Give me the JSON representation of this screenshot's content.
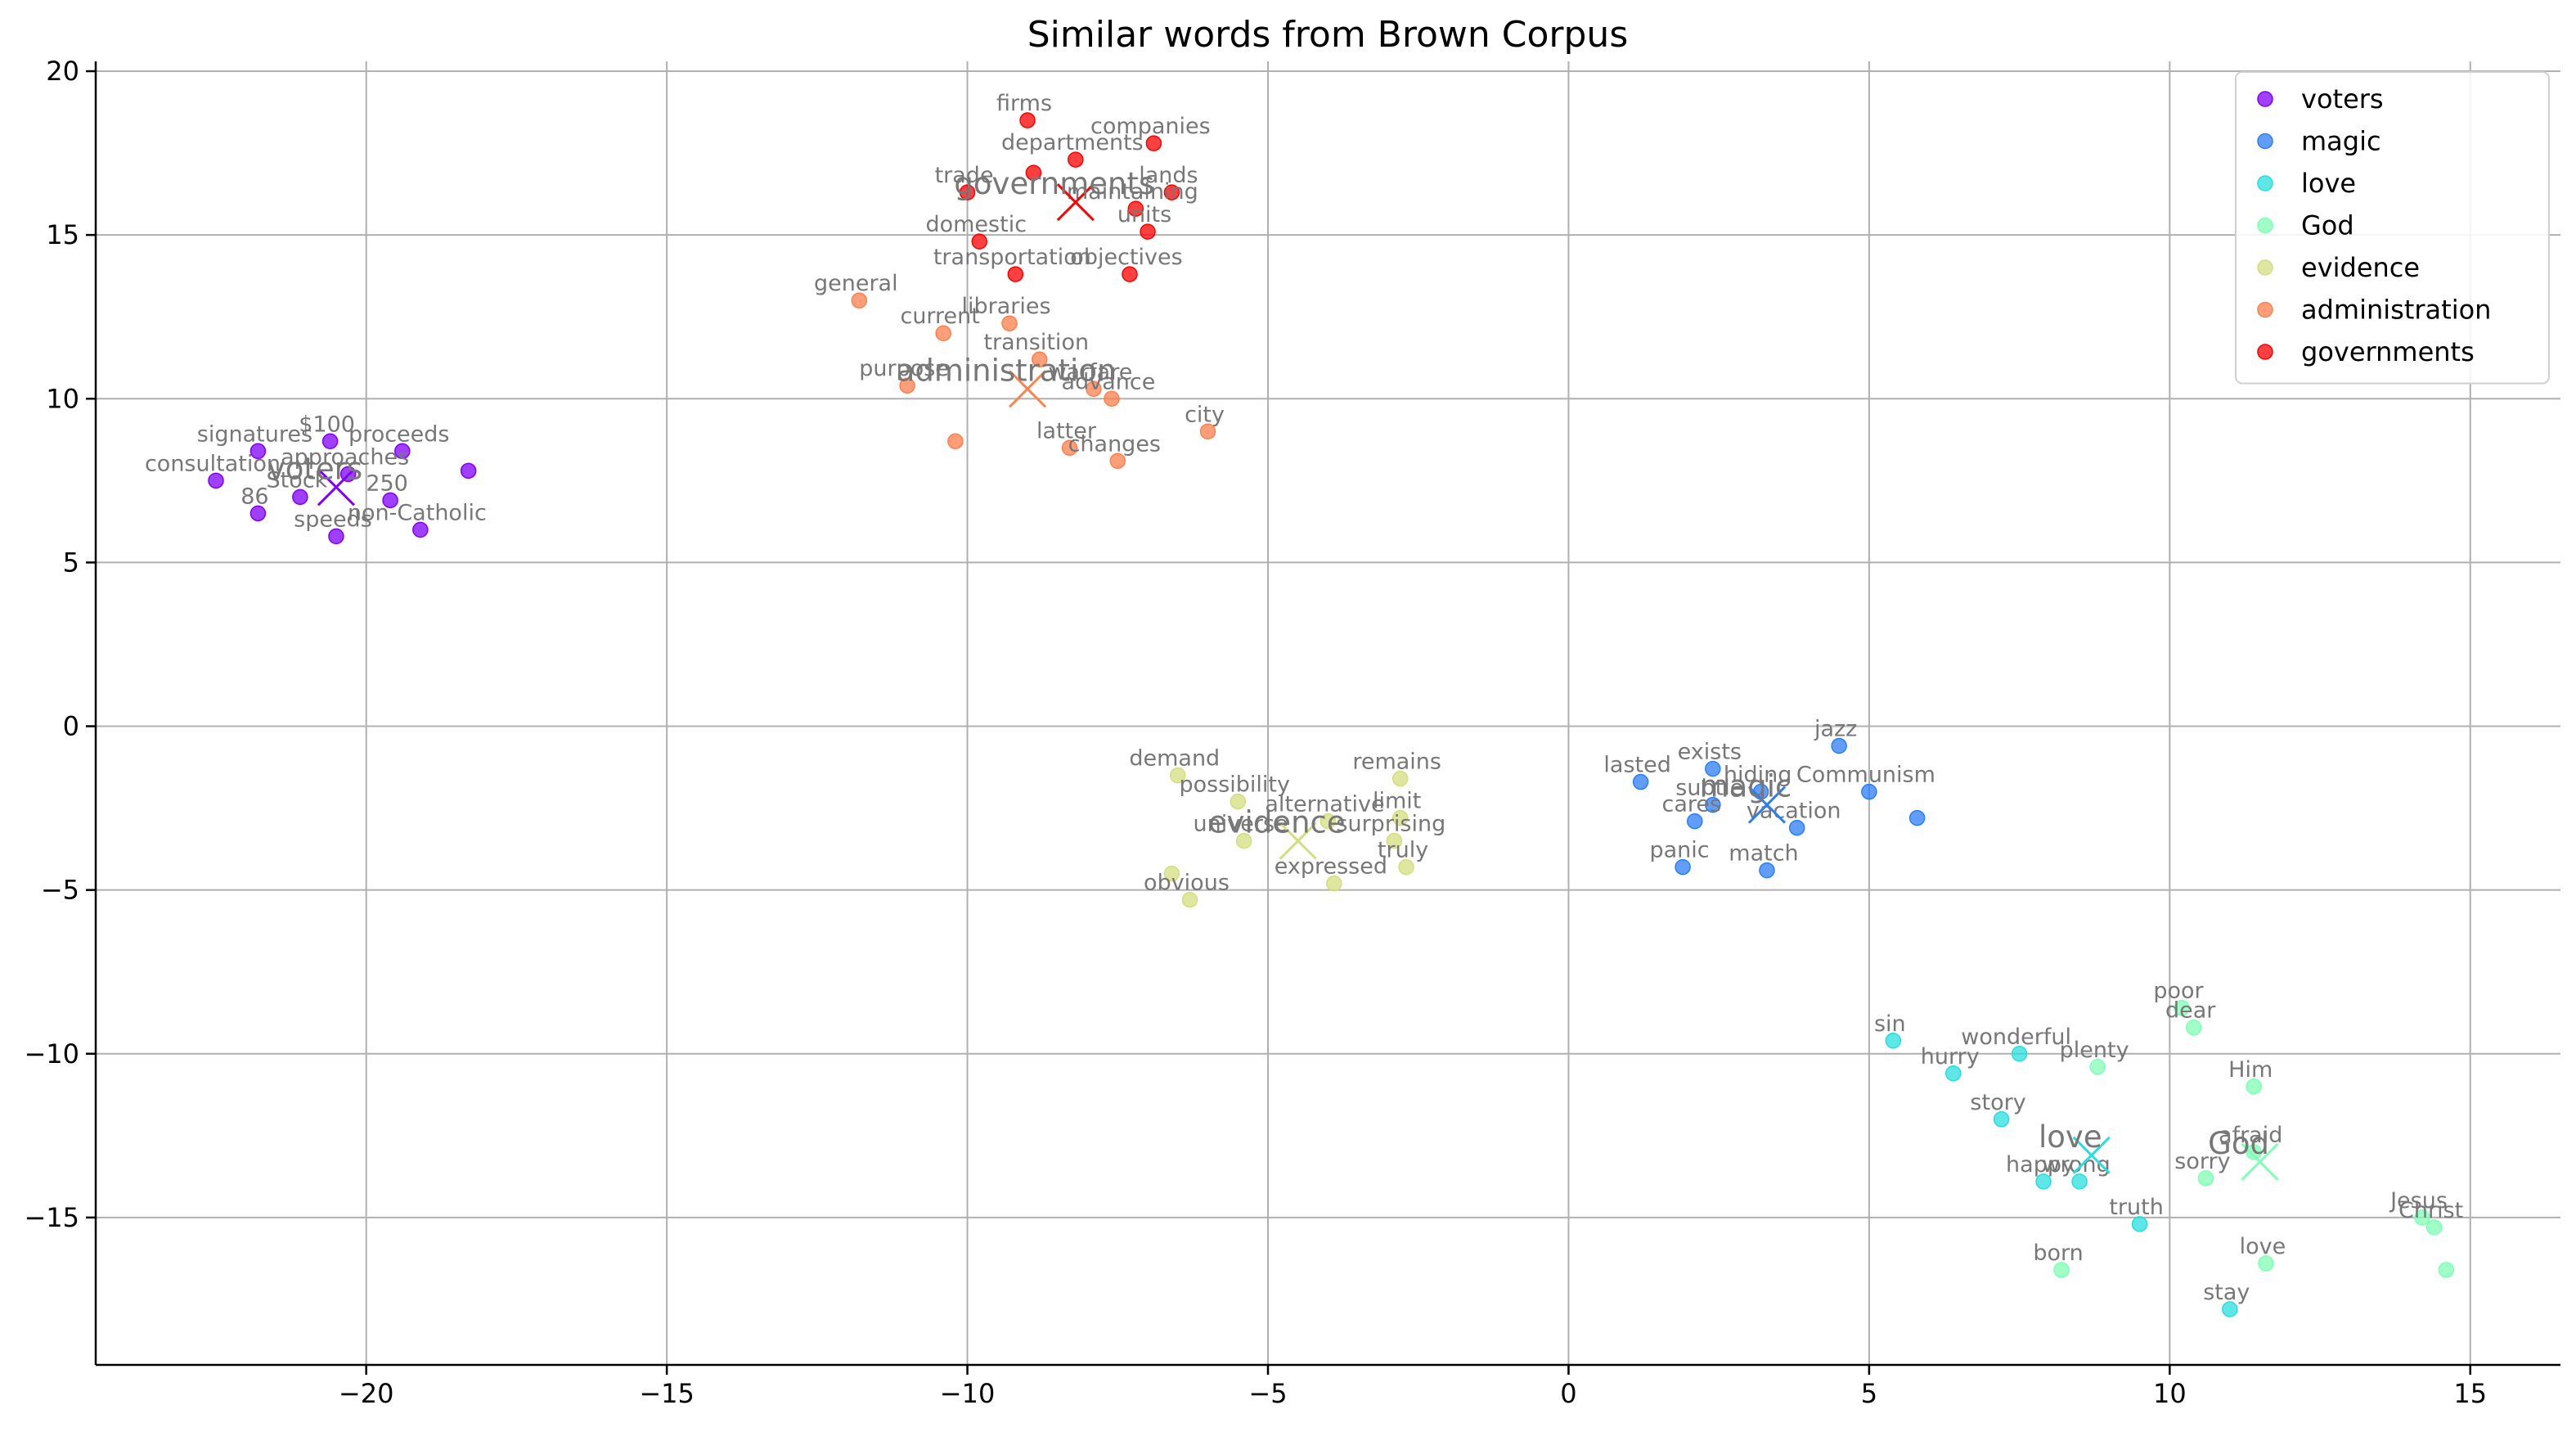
{
  "chart_data": {
    "type": "scatter",
    "title": "Similar words from Brown Corpus",
    "xlabel": "",
    "ylabel": "",
    "xlim": [
      -24.5,
      16.5
    ],
    "ylim": [
      -19.5,
      20.3
    ],
    "xticks": [
      -20,
      -15,
      -10,
      -5,
      0,
      5,
      10,
      15
    ],
    "yticks": [
      -15,
      -10,
      -5,
      0,
      5,
      10,
      15,
      20
    ],
    "grid": true,
    "legend_position": "top-right",
    "series": [
      {
        "name": "voters",
        "color": "#8000ff",
        "centroid": {
          "label": "voters",
          "x": -20.5,
          "y": 7.3
        },
        "points": [
          {
            "label": "signatures",
            "x": -21.8,
            "y": 8.4
          },
          {
            "label": "$100",
            "x": -20.6,
            "y": 8.7
          },
          {
            "label": "approaches",
            "x": -20.3,
            "y": 7.7
          },
          {
            "label": "proceeds",
            "x": -19.4,
            "y": 8.4
          },
          {
            "label": "250",
            "x": -19.6,
            "y": 6.9
          },
          {
            "label": "consultation",
            "x": -22.5,
            "y": 7.5
          },
          {
            "label": "86",
            "x": -21.8,
            "y": 6.5
          },
          {
            "label": "Stock",
            "x": -21.1,
            "y": 7.0
          },
          {
            "label": "non-Catholic",
            "x": -19.1,
            "y": 6.0
          },
          {
            "label": "speeds",
            "x": -20.5,
            "y": 5.8
          },
          {
            "label": "",
            "x": -18.3,
            "y": 7.8
          }
        ]
      },
      {
        "name": "magic",
        "color": "#2c7ef7",
        "centroid": {
          "label": "magic",
          "x": 3.3,
          "y": -2.4
        },
        "points": [
          {
            "label": "jazz",
            "x": 4.5,
            "y": -0.6
          },
          {
            "label": "exists",
            "x": 2.4,
            "y": -1.3
          },
          {
            "label": "lasted",
            "x": 1.2,
            "y": -1.7
          },
          {
            "label": "hiding",
            "x": 3.2,
            "y": -2.0
          },
          {
            "label": "subtle",
            "x": 2.4,
            "y": -2.4
          },
          {
            "label": "cares",
            "x": 2.1,
            "y": -2.9
          },
          {
            "label": "vacation",
            "x": 3.8,
            "y": -3.1
          },
          {
            "label": "Communism",
            "x": 5.0,
            "y": -2.0
          },
          {
            "label": "",
            "x": 5.8,
            "y": -2.8
          },
          {
            "label": "panic",
            "x": 1.9,
            "y": -4.3
          },
          {
            "label": "match",
            "x": 3.3,
            "y": -4.4
          }
        ]
      },
      {
        "name": "love",
        "color": "#2adddd",
        "centroid": {
          "label": "love",
          "x": 8.7,
          "y": -13.1
        },
        "points": [
          {
            "label": "sin",
            "x": 5.4,
            "y": -9.6
          },
          {
            "label": "wonderful",
            "x": 7.5,
            "y": -10.0
          },
          {
            "label": "hurry",
            "x": 6.4,
            "y": -10.6
          },
          {
            "label": "story",
            "x": 7.2,
            "y": -12.0
          },
          {
            "label": "happy",
            "x": 7.9,
            "y": -13.9
          },
          {
            "label": "wrong",
            "x": 8.5,
            "y": -13.9
          },
          {
            "label": "truth",
            "x": 9.5,
            "y": -15.2
          },
          {
            "label": "stay",
            "x": 11.0,
            "y": -17.8
          }
        ]
      },
      {
        "name": "God",
        "color": "#80ffb4",
        "centroid": {
          "label": "God",
          "x": 11.5,
          "y": -13.3
        },
        "points": [
          {
            "label": "poor",
            "x": 10.2,
            "y": -8.6
          },
          {
            "label": "dear",
            "x": 10.4,
            "y": -9.2
          },
          {
            "label": "plenty",
            "x": 8.8,
            "y": -10.4
          },
          {
            "label": "Him",
            "x": 11.4,
            "y": -11.0
          },
          {
            "label": "afraid",
            "x": 11.4,
            "y": -13.0
          },
          {
            "label": "sorry",
            "x": 10.6,
            "y": -13.8
          },
          {
            "label": "Jesus",
            "x": 14.2,
            "y": -15.0
          },
          {
            "label": "Christ",
            "x": 14.4,
            "y": -15.3
          },
          {
            "label": "love",
            "x": 11.6,
            "y": -16.4
          },
          {
            "label": "born",
            "x": 8.2,
            "y": -16.6
          },
          {
            "label": "",
            "x": 14.6,
            "y": -16.6
          }
        ]
      },
      {
        "name": "evidence",
        "color": "#d4dd80",
        "centroid": {
          "label": "evidence",
          "x": -4.5,
          "y": -3.5
        },
        "points": [
          {
            "label": "demand",
            "x": -6.5,
            "y": -1.5
          },
          {
            "label": "remains",
            "x": -2.8,
            "y": -1.6
          },
          {
            "label": "possibility",
            "x": -5.5,
            "y": -2.3
          },
          {
            "label": "alternative",
            "x": -4.0,
            "y": -2.9
          },
          {
            "label": "limit",
            "x": -2.8,
            "y": -2.8
          },
          {
            "label": "universe",
            "x": -5.4,
            "y": -3.5
          },
          {
            "label": "surprising",
            "x": -2.9,
            "y": -3.5
          },
          {
            "label": "truly",
            "x": -2.7,
            "y": -4.3
          },
          {
            "label": "expressed",
            "x": -3.9,
            "y": -4.8
          },
          {
            "label": "",
            "x": -6.6,
            "y": -4.5
          },
          {
            "label": "obvious",
            "x": -6.3,
            "y": -5.3
          }
        ]
      },
      {
        "name": "administration",
        "color": "#ff7f4d",
        "centroid": {
          "label": "administration",
          "x": -9.0,
          "y": 10.3
        },
        "points": [
          {
            "label": "general",
            "x": -11.8,
            "y": 13.0
          },
          {
            "label": "libraries",
            "x": -9.3,
            "y": 12.3
          },
          {
            "label": "current",
            "x": -10.4,
            "y": 12.0
          },
          {
            "label": "transition",
            "x": -8.8,
            "y": 11.2
          },
          {
            "label": "warfare",
            "x": -7.9,
            "y": 10.3
          },
          {
            "label": "advance",
            "x": -7.6,
            "y": 10.0
          },
          {
            "label": "purpose",
            "x": -11.0,
            "y": 10.4
          },
          {
            "label": "city",
            "x": -6.0,
            "y": 9.0
          },
          {
            "label": "",
            "x": -10.2,
            "y": 8.7
          },
          {
            "label": "latter",
            "x": -8.3,
            "y": 8.5
          },
          {
            "label": "changes",
            "x": -7.5,
            "y": 8.1
          }
        ]
      },
      {
        "name": "governments",
        "color": "#ff0000",
        "centroid": {
          "label": "governments",
          "x": -8.2,
          "y": 16.0
        },
        "points": [
          {
            "label": "firms",
            "x": -9.0,
            "y": 18.5
          },
          {
            "label": "companies",
            "x": -6.9,
            "y": 17.8
          },
          {
            "label": "departments",
            "x": -8.2,
            "y": 17.3
          },
          {
            "label": "",
            "x": -8.9,
            "y": 16.9
          },
          {
            "label": "trade",
            "x": -10.0,
            "y": 16.3
          },
          {
            "label": "maintaining",
            "x": -7.2,
            "y": 15.8
          },
          {
            "label": "lands",
            "x": -6.6,
            "y": 16.3
          },
          {
            "label": "units",
            "x": -7.0,
            "y": 15.1
          },
          {
            "label": "domestic",
            "x": -9.8,
            "y": 14.8
          },
          {
            "label": "transportation",
            "x": -9.2,
            "y": 13.8
          },
          {
            "label": "objectives",
            "x": -7.3,
            "y": 13.8
          }
        ]
      }
    ]
  }
}
